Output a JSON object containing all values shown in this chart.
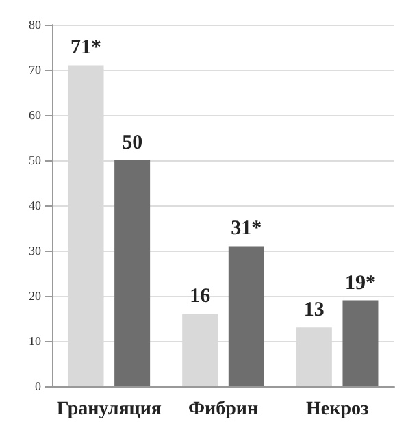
{
  "chart_data": {
    "type": "bar",
    "categories": [
      "Грануляция",
      "Фибрин",
      "Некроз"
    ],
    "series": [
      {
        "color": "#d9d9d9",
        "values": [
          71,
          16,
          13
        ],
        "value_labels": [
          "71*",
          "16",
          "13"
        ]
      },
      {
        "color": "#6e6e6e",
        "values": [
          50,
          31,
          19
        ],
        "value_labels": [
          "50",
          "31*",
          "19*"
        ]
      }
    ],
    "ylim": [
      0,
      80
    ],
    "yticks": [
      0,
      10,
      20,
      30,
      40,
      50,
      60,
      70,
      80
    ],
    "grid": "y"
  }
}
